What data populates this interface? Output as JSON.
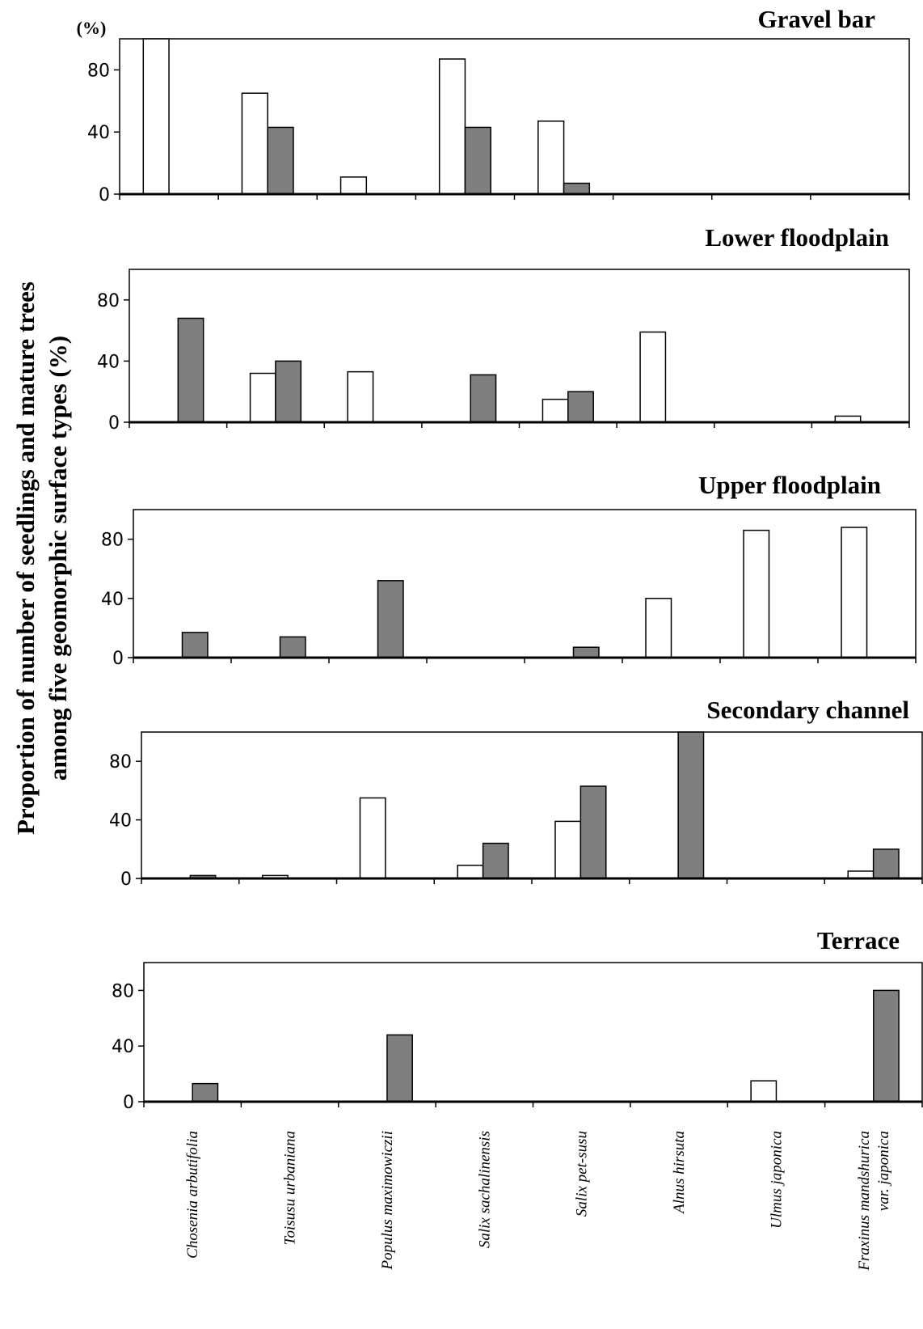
{
  "chart_data": {
    "type": "bar",
    "ylabel_lines": [
      "Proportion of number of seedlings and mature trees",
      "among five geomorphic surface types (%)"
    ],
    "y_unit": "(%)",
    "ylim": [
      0,
      100
    ],
    "yticks": [
      0,
      40,
      80
    ],
    "categories": [
      [
        "Chosenia arbutifolia"
      ],
      [
        "Toisusu urbaniana"
      ],
      [
        "Populus maximowiczii"
      ],
      [
        "Salix sachalinensis"
      ],
      [
        "Salix pet-susu"
      ],
      [
        "Alnus hirsuta"
      ],
      [
        "Ulmus japonica"
      ],
      [
        "Fraxinus mandshurica",
        "var. japonica"
      ]
    ],
    "series_legend": "",
    "panels": [
      {
        "title": "Gravel bar",
        "series": [
          {
            "values": [
              100,
              65,
              11,
              87,
              47,
              0,
              0,
              0
            ]
          },
          {
            "values": [
              0,
              43,
              0,
              43,
              7,
              0,
              0,
              0
            ]
          }
        ]
      },
      {
        "title": "Lower floodplain",
        "series": [
          {
            "values": [
              0,
              32,
              33,
              0,
              15,
              59,
              0,
              4
            ]
          },
          {
            "values": [
              68,
              40,
              0,
              31,
              20,
              0,
              0,
              0
            ]
          }
        ]
      },
      {
        "title": "Upper floodplain",
        "series": [
          {
            "values": [
              0,
              0,
              0,
              0,
              0,
              40,
              86,
              88
            ]
          },
          {
            "values": [
              17,
              14,
              52,
              0,
              7,
              0,
              0,
              0
            ]
          }
        ]
      },
      {
        "title": "Secondary channel",
        "series": [
          {
            "values": [
              0,
              2,
              55,
              9,
              39,
              0,
              0,
              5
            ]
          },
          {
            "values": [
              2,
              0,
              0,
              24,
              63,
              100,
              0,
              20
            ]
          }
        ]
      },
      {
        "title": "Terrace",
        "series": [
          {
            "values": [
              0,
              0,
              0,
              0,
              0,
              0,
              15,
              0
            ]
          },
          {
            "values": [
              13,
              0,
              48,
              0,
              0,
              0,
              0,
              80
            ]
          }
        ]
      }
    ],
    "colors": {
      "series1": "#ffffff",
      "series2": "#7f7f7f",
      "outline": "#000000"
    }
  }
}
